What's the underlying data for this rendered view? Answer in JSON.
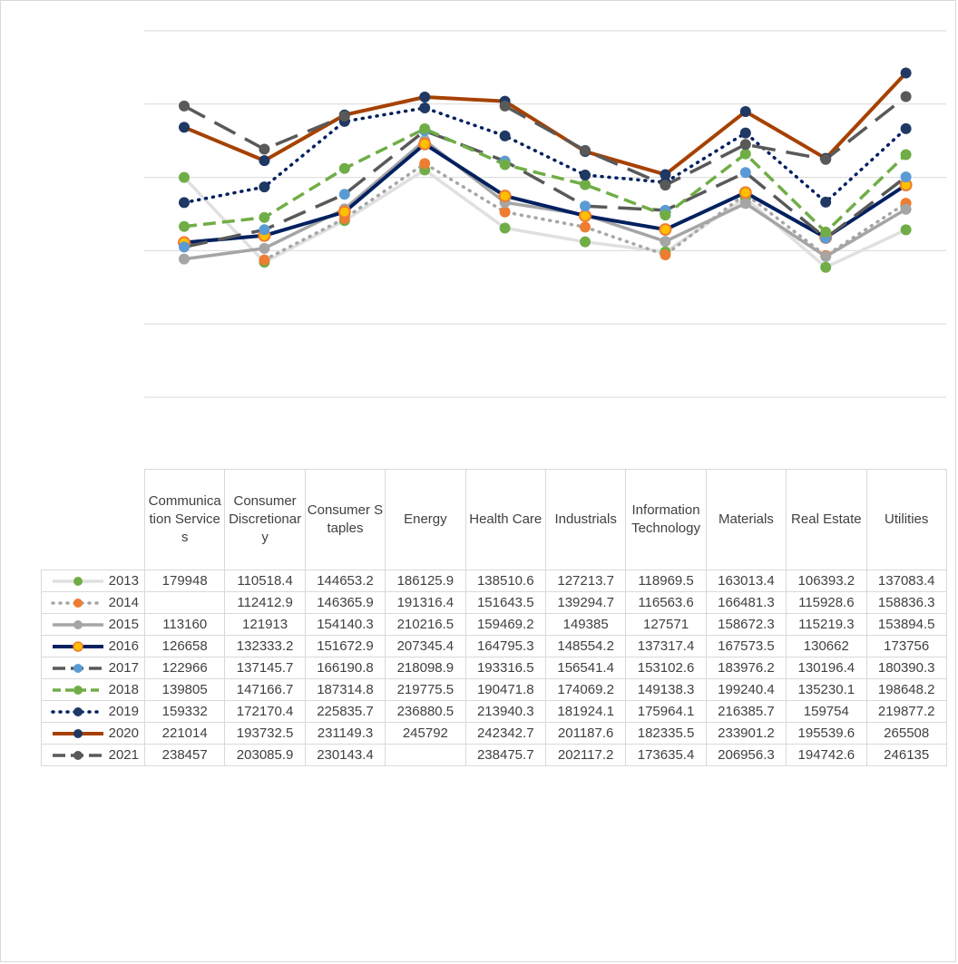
{
  "chart_data": {
    "type": "line",
    "title": "",
    "xlabel": "",
    "ylabel": "",
    "categories": [
      "Communication Services",
      "Consumer Discretionary",
      "Consumer Staples",
      "Energy",
      "Health Care",
      "Industrials",
      "Information Technology",
      "Materials",
      "Real Estate",
      "Utilities"
    ],
    "series": [
      {
        "name": "2013",
        "values": [
          179948,
          110518.4,
          144653.2,
          186125.9,
          138510.6,
          127213.7,
          118969.5,
          163013.4,
          106393.2,
          137083.4
        ],
        "color": "#e0e0e0",
        "marker": "#70ad47",
        "style": "solid"
      },
      {
        "name": "2014",
        "values": [
          null,
          112412.9,
          146365.9,
          191316.4,
          151643.5,
          139294.7,
          116563.6,
          166481.3,
          115928.6,
          158836.3
        ],
        "color": "#a6a6a6",
        "marker": "#ed7d31",
        "style": "dotted"
      },
      {
        "name": "2015",
        "values": [
          113160,
          121913,
          154140.3,
          210216.5,
          159469.2,
          149385,
          127571,
          158672.3,
          115219.3,
          153894.5
        ],
        "color": "#a5a5a5",
        "marker": "#a5a5a5",
        "style": "solid"
      },
      {
        "name": "2016",
        "values": [
          126658,
          132333.2,
          151672.9,
          207345.4,
          164795.3,
          148554.2,
          137317.4,
          167573.5,
          130662,
          173756
        ],
        "color": "#002060",
        "marker": "#ffc000",
        "markerRing": "#ed7d31",
        "style": "solid"
      },
      {
        "name": "2017",
        "values": [
          122966,
          137145.7,
          166190.8,
          218098.9,
          193316.5,
          156541.4,
          153102.6,
          183976.2,
          130196.4,
          180390.3
        ],
        "color": "#595959",
        "marker": "#5b9bd5",
        "style": "longdash"
      },
      {
        "name": "2018",
        "values": [
          139805,
          147166.7,
          187314.8,
          219775.5,
          190471.8,
          174069.2,
          149138.3,
          199240.4,
          135230.1,
          198648.2
        ],
        "color": "#70ad47",
        "marker": "#70ad47",
        "style": "dash"
      },
      {
        "name": "2019",
        "values": [
          159332,
          172170.4,
          225835.7,
          236880.5,
          213940.3,
          181924.1,
          175964.1,
          216385.7,
          159754,
          219877.2
        ],
        "color": "#002060",
        "marker": "#1f3864",
        "style": "dotted"
      },
      {
        "name": "2020",
        "values": [
          221014,
          193732.5,
          231149.3,
          245792,
          242342.7,
          201187.6,
          182335.5,
          233901.2,
          195539.6,
          265508
        ],
        "color": "#a64100",
        "marker": "#1f3864",
        "style": "solid"
      },
      {
        "name": "2021",
        "values": [
          238457,
          203085.9,
          230143.4,
          null,
          238475.7,
          202117.2,
          173635.4,
          206956.3,
          194742.6,
          246135
        ],
        "color": "#595959",
        "marker": "#595959",
        "style": "longdash"
      }
    ],
    "ylim": [
      0,
      300000
    ],
    "grid": true,
    "legend": "data-table"
  }
}
